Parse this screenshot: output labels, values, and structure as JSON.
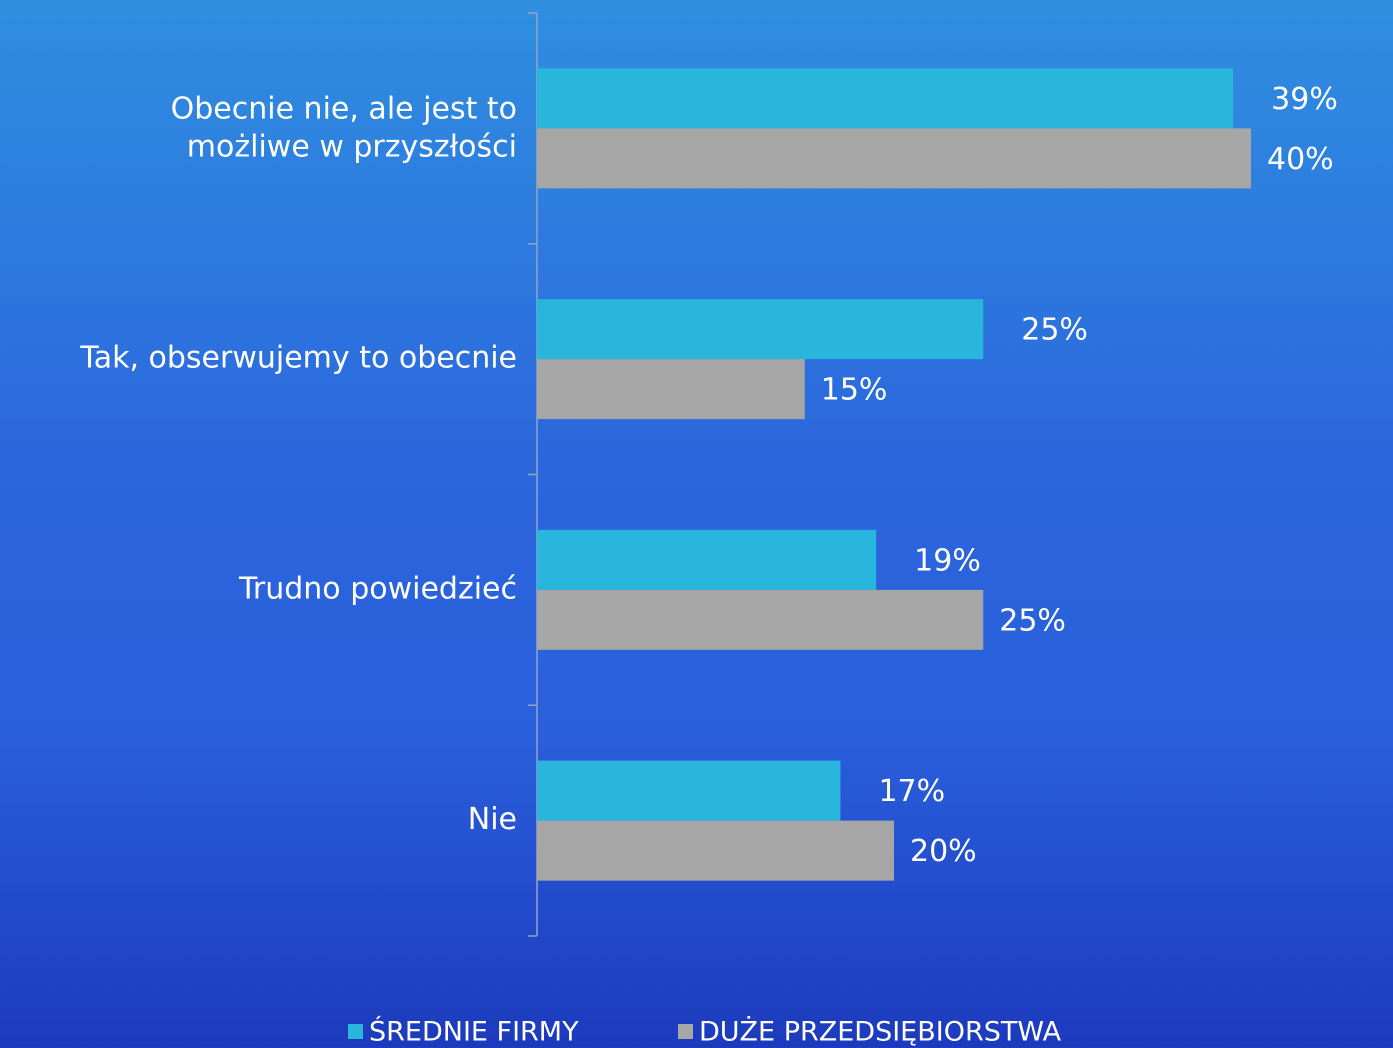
{
  "chart_data": {
    "type": "bar",
    "orientation": "horizontal",
    "categories": [
      "Obecnie nie, ale jest to\nmożliwe w przyszłości",
      "Tak, obserwujemy to obecnie",
      "Trudno powiedzieć",
      "Nie"
    ],
    "series": [
      {
        "name": "ŚREDNIE FIRMY",
        "color": "#29b6dc",
        "values": [
          39,
          25,
          19,
          17
        ],
        "value_labels": [
          "39%",
          "25%",
          "19%",
          "17%"
        ]
      },
      {
        "name": "DUŻE PRZEDSIĘBIORSTWA",
        "color": "#a6a6a6",
        "values": [
          40,
          15,
          25,
          20
        ],
        "value_labels": [
          "40%",
          "15%",
          "25%",
          "20%"
        ]
      }
    ],
    "legend": "bottom"
  }
}
